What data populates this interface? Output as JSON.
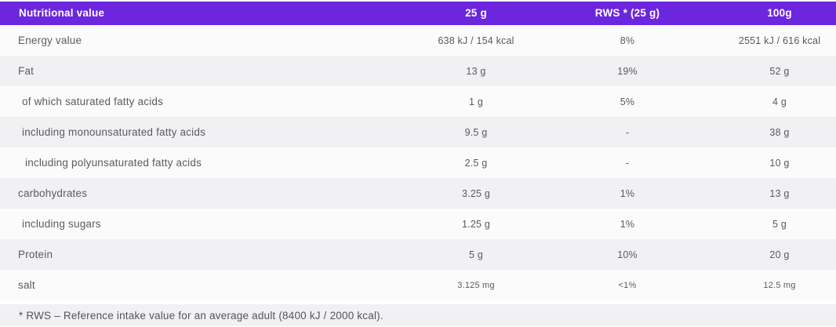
{
  "accent_color": "#6c26dd",
  "row_colors": {
    "light": "#fbfbfb",
    "shaded": "#f1f1f3"
  },
  "header": {
    "label": "Nutritional value",
    "col_25g": "25 g",
    "col_rws": "RWS * (25 g)",
    "col_100g": "100g"
  },
  "rows": [
    {
      "label": "Energy value",
      "indent": 0,
      "v25": "638 kJ / 154 kcal",
      "rws": "8%",
      "v100": "2551 kJ / 616 kcal"
    },
    {
      "label": "Fat",
      "indent": 0,
      "v25": "13 g",
      "rws": "19%",
      "v100": "52 g"
    },
    {
      "label": "of which saturated fatty acids",
      "indent": 1,
      "v25": "1 g",
      "rws": "5%",
      "v100": "4 g"
    },
    {
      "label": "including monounsaturated fatty acids",
      "indent": 1,
      "v25": "9.5 g",
      "rws": "-",
      "v100": "38 g"
    },
    {
      "label": "including polyunsaturated fatty acids",
      "indent": 2,
      "v25": "2.5 g",
      "rws": "-",
      "v100": "10 g"
    },
    {
      "label": "carbohydrates",
      "indent": 0,
      "v25": "3.25 g",
      "rws": "1%",
      "v100": "13 g"
    },
    {
      "label": "including sugars",
      "indent": 1,
      "v25": "1.25 g",
      "rws": "1%",
      "v100": "5 g"
    },
    {
      "label": "Protein",
      "indent": 0,
      "v25": "5 g",
      "rws": "10%",
      "v100": "20 g"
    },
    {
      "label": "salt",
      "indent": 0,
      "small": true,
      "v25": "3.125 mg",
      "rws": "<1%",
      "v100": "12.5 mg"
    }
  ],
  "footnote": "* RWS – Reference intake value for an average adult (8400 kJ / 2000 kcal)."
}
